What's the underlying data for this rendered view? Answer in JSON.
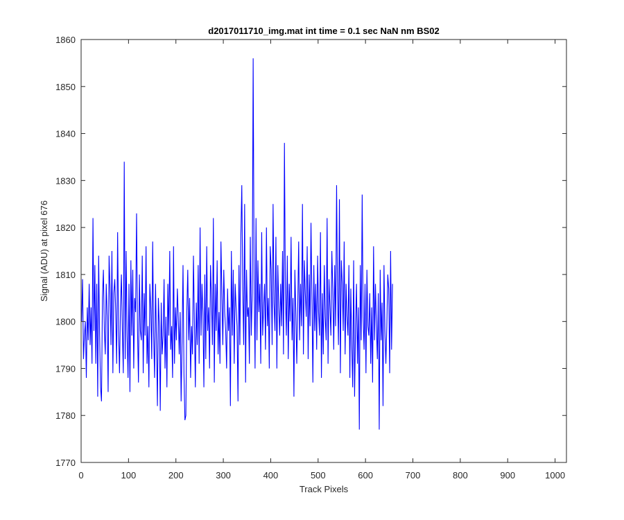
{
  "chart_data": {
    "type": "line",
    "title": "d2017011710_img.mat int time = 0.1 sec  NaN nm BS02",
    "xlabel": "Track Pixels",
    "ylabel": "Signal (ADU) at pixel 676",
    "xlim": [
      0,
      1024
    ],
    "ylim": [
      1770,
      1860
    ],
    "xticks": [
      0,
      100,
      200,
      300,
      400,
      500,
      600,
      700,
      800,
      900,
      1000
    ],
    "yticks": [
      1770,
      1780,
      1790,
      1800,
      1810,
      1820,
      1830,
      1840,
      1850,
      1860
    ],
    "grid": false,
    "legend": "none",
    "series": [
      {
        "color": "#0000ff",
        "x_start": 1,
        "x_step": 2,
        "values": [
          1800,
          1809,
          1792,
          1797,
          1800,
          1788,
          1803,
          1796,
          1808,
          1795,
          1803,
          1791,
          1822,
          1798,
          1812,
          1791,
          1808,
          1784,
          1814,
          1797,
          1786,
          1783,
          1805,
          1811,
          1798,
          1793,
          1808,
          1801,
          1785,
          1814,
          1807,
          1795,
          1815,
          1789,
          1806,
          1809,
          1802,
          1791,
          1819,
          1798,
          1789,
          1803,
          1810,
          1798,
          1789,
          1834,
          1792,
          1815,
          1797,
          1788,
          1808,
          1785,
          1813,
          1797,
          1811,
          1790,
          1805,
          1802,
          1823,
          1798,
          1787,
          1810,
          1798,
          1796,
          1814,
          1789,
          1806,
          1797,
          1816,
          1791,
          1799,
          1786,
          1808,
          1803,
          1792,
          1817,
          1797,
          1788,
          1808,
          1796,
          1782,
          1805,
          1799,
          1781,
          1804,
          1793,
          1797,
          1809,
          1790,
          1801,
          1786,
          1808,
          1797,
          1815,
          1794,
          1799,
          1788,
          1816,
          1791,
          1803,
          1796,
          1807,
          1801,
          1793,
          1802,
          1783,
          1796,
          1812,
          1789,
          1779,
          1780,
          1802,
          1811,
          1796,
          1805,
          1788,
          1799,
          1793,
          1814,
          1800,
          1786,
          1804,
          1795,
          1812,
          1791,
          1820,
          1797,
          1808,
          1802,
          1786,
          1810,
          1792,
          1816,
          1798,
          1803,
          1790,
          1812,
          1805,
          1795,
          1822,
          1787,
          1808,
          1798,
          1813,
          1793,
          1802,
          1791,
          1817,
          1806,
          1795,
          1811,
          1802,
          1798,
          1790,
          1807,
          1798,
          1803,
          1782,
          1815,
          1797,
          1811,
          1791,
          1808,
          1803,
          1799,
          1783,
          1812,
          1795,
          1818,
          1829,
          1807,
          1795,
          1825,
          1787,
          1811,
          1801,
          1803,
          1791,
          1818,
          1797,
          1806,
          1856,
          1809,
          1790,
          1822,
          1796,
          1813,
          1802,
          1808,
          1791,
          1819,
          1797,
          1803,
          1808,
          1794,
          1820,
          1799,
          1805,
          1790,
          1816,
          1811,
          1795,
          1825,
          1804,
          1798,
          1818,
          1790,
          1812,
          1803,
          1797,
          1808,
          1799,
          1815,
          1793,
          1838,
          1806,
          1797,
          1814,
          1792,
          1808,
          1800,
          1818,
          1796,
          1805,
          1784,
          1811,
          1802,
          1791,
          1803,
          1817,
          1796,
          1808,
          1799,
          1825,
          1793,
          1813,
          1806,
          1801,
          1816,
          1792,
          1810,
          1799,
          1821,
          1805,
          1787,
          1812,
          1798,
          1808,
          1794,
          1814,
          1802,
          1797,
          1819,
          1788,
          1806,
          1793,
          1812,
          1801,
          1796,
          1822,
          1791,
          1809,
          1803,
          1797,
          1815,
          1807,
          1794,
          1812,
          1799,
          1829,
          1806,
          1795,
          1826,
          1789,
          1813,
          1808,
          1798,
          1817,
          1793,
          1808,
          1801,
          1797,
          1812,
          1788,
          1807,
          1795,
          1786,
          1813,
          1784,
          1799,
          1808,
          1791,
          1803,
          1777,
          1812,
          1796,
          1827,
          1801,
          1794,
          1808,
          1789,
          1811,
          1799,
          1797,
          1806,
          1791,
          1803,
          1787,
          1816,
          1796,
          1808,
          1799,
          1792,
          1806,
          1777,
          1811,
          1796,
          1804,
          1782,
          1812,
          1798,
          1791,
          1799,
          1810,
          1807,
          1789,
          1815,
          1794,
          1808
        ]
      }
    ]
  }
}
